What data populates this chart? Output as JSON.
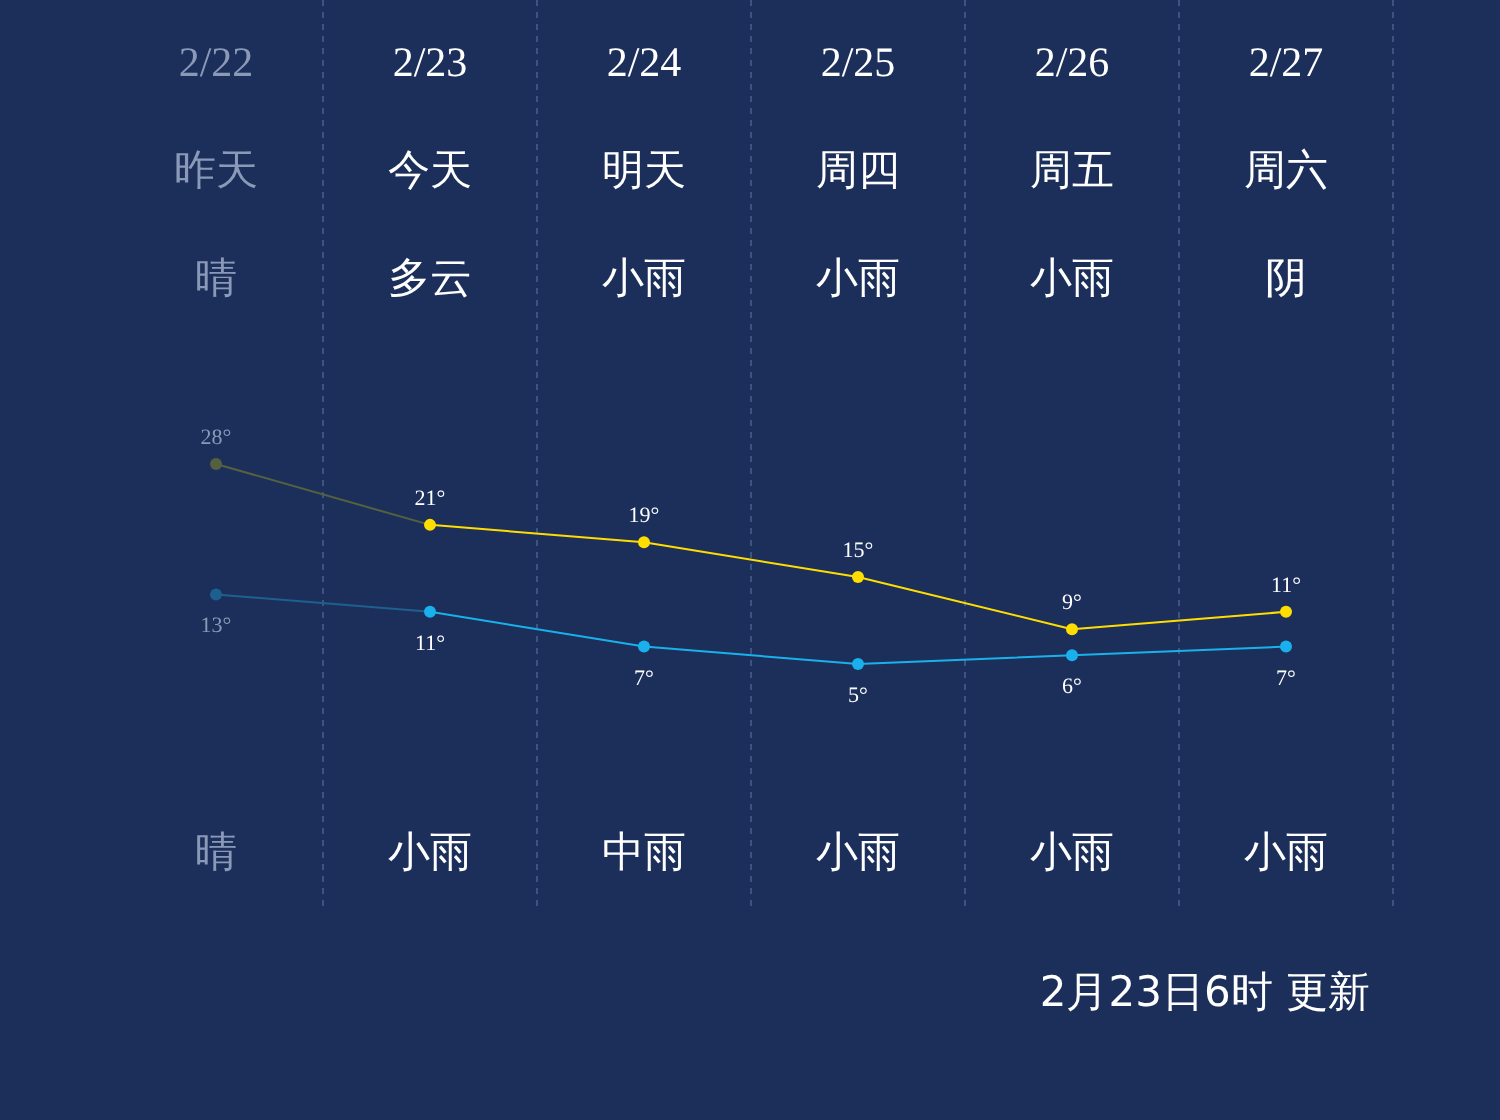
{
  "chart_data": {
    "type": "line",
    "categories": [
      "2/22",
      "2/23",
      "2/24",
      "2/25",
      "2/26",
      "2/27"
    ],
    "series": [
      {
        "color": "#ffdd00",
        "colors": [
          "#55603e",
          "#ffdd00",
          "#ffdd00",
          "#ffdd00",
          "#ffdd00",
          "#ffdd00"
        ],
        "values": [
          28,
          21,
          19,
          15,
          9,
          11
        ],
        "value_labels": [
          "28°",
          "21°",
          "19°",
          "15°",
          "9°",
          "11°"
        ]
      },
      {
        "color": "#1ab0ec",
        "colors": [
          "#1d5f8e",
          "#1ab0ec",
          "#1ab0ec",
          "#1ab0ec",
          "#1ab0ec",
          "#1ab0ec"
        ],
        "values": [
          13,
          11,
          7,
          5,
          6,
          7
        ],
        "value_labels": [
          "13°",
          "11°",
          "7°",
          "5°",
          "6°",
          "7°"
        ]
      }
    ],
    "marker": "circle",
    "grid": "x",
    "annotations": [
      "昨天",
      "今天",
      "明天",
      "周四",
      "周五",
      "周六",
      "晴",
      "多云",
      "小雨",
      "小雨",
      "小雨",
      "阴",
      "晴",
      "小雨",
      "中雨",
      "小雨",
      "小雨",
      "小雨",
      "2月23日6时 更新"
    ]
  }
}
